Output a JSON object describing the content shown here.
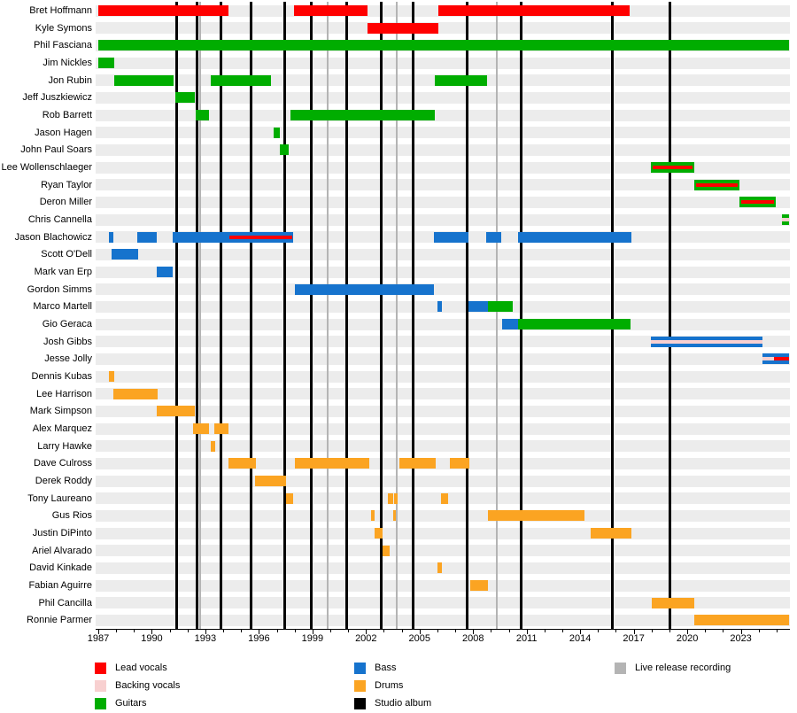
{
  "chart_data": {
    "type": "timeline",
    "description": "Band line-up timeline: horizontal bars per member by role, vertical lines for studio albums and live release recordings",
    "x_axis": {
      "start": 1987.0,
      "end": 2025.7,
      "major_ticks": [
        1987,
        1990,
        1993,
        1996,
        1999,
        2002,
        2005,
        2008,
        2011,
        2014,
        2017,
        2020,
        2023
      ],
      "minor_tick_interval": 1
    },
    "colors": {
      "lead_vocals": "#ff0000",
      "backing_vocals": "#f8d0d0",
      "guitars": "#00ad00",
      "bass": "#1673cd",
      "drums": "#fba422",
      "studio_album": "#000000",
      "live_release": "#b4b4b4",
      "row_band": "#ececec"
    },
    "studio_album_years": [
      1991.4,
      1992.55,
      1993.85,
      1995.55,
      1997.45,
      1998.95,
      2000.9,
      2002.85,
      2004.65,
      2007.65,
      2010.7,
      2015.8,
      2019.05
    ],
    "live_release_years": [
      1992.7,
      1999.85,
      2003.7,
      2009.35
    ],
    "members": [
      {
        "name": "Bret Hoffmann",
        "segments": [
          {
            "role": "lead_vocals",
            "start": 1987.0,
            "end": 1994.3
          },
          {
            "role": "lead_vocals",
            "start": 1997.95,
            "end": 2002.1
          },
          {
            "role": "lead_vocals",
            "start": 2006.05,
            "end": 2016.75
          }
        ]
      },
      {
        "name": "Kyle Symons",
        "segments": [
          {
            "role": "lead_vocals",
            "start": 2002.1,
            "end": 2006.05
          }
        ]
      },
      {
        "name": "Phil Fasciana",
        "segments": [
          {
            "role": "guitars",
            "start": 1987.0,
            "end": 2025.7
          }
        ]
      },
      {
        "name": "Jim Nickles",
        "segments": [
          {
            "role": "guitars",
            "start": 1987.0,
            "end": 1987.9
          }
        ]
      },
      {
        "name": "Jon Rubin",
        "segments": [
          {
            "role": "guitars",
            "start": 1987.9,
            "end": 1991.2
          },
          {
            "role": "guitars",
            "start": 1993.3,
            "end": 1996.7
          },
          {
            "role": "guitars",
            "start": 2005.85,
            "end": 2008.8
          }
        ]
      },
      {
        "name": "Jeff Juszkiewicz",
        "segments": [
          {
            "role": "guitars",
            "start": 1991.3,
            "end": 1992.4
          }
        ]
      },
      {
        "name": "Rob Barrett",
        "segments": [
          {
            "role": "guitars",
            "start": 1992.45,
            "end": 1993.2
          },
          {
            "role": "guitars",
            "start": 1997.75,
            "end": 2005.85
          }
        ]
      },
      {
        "name": "Jason Hagen",
        "segments": [
          {
            "role": "guitars",
            "start": 1996.8,
            "end": 1997.15
          }
        ]
      },
      {
        "name": "John Paul Soars",
        "segments": [
          {
            "role": "guitars",
            "start": 1997.15,
            "end": 1997.65
          }
        ]
      },
      {
        "name": "Lee Wollenschlaeger",
        "segments": [
          {
            "role": "guitars",
            "start": 2017.95,
            "end": 2020.4,
            "overlays": [
              {
                "role": "lead_vocals",
                "start": 2018.05,
                "end": 2020.3
              }
            ]
          }
        ]
      },
      {
        "name": "Ryan Taylor",
        "segments": [
          {
            "role": "guitars",
            "start": 2020.4,
            "end": 2022.9,
            "overlays": [
              {
                "role": "lead_vocals",
                "start": 2020.5,
                "end": 2022.8
              }
            ]
          }
        ]
      },
      {
        "name": "Deron Miller",
        "segments": [
          {
            "role": "guitars",
            "start": 2022.9,
            "end": 2024.95,
            "overlays": [
              {
                "role": "lead_vocals",
                "start": 2023.0,
                "end": 2024.85
              }
            ]
          }
        ]
      },
      {
        "name": "Chris Cannella",
        "segments": [
          {
            "role": "guitars",
            "start": 2025.3,
            "end": 2025.7,
            "overlays": [
              {
                "role": "backing_vocals",
                "start": 2025.3,
                "end": 2025.7
              }
            ]
          }
        ]
      },
      {
        "name": "Jason Blachowicz",
        "segments": [
          {
            "role": "bass",
            "start": 1987.6,
            "end": 1987.85
          },
          {
            "role": "bass",
            "start": 1989.2,
            "end": 1990.3
          },
          {
            "role": "bass",
            "start": 1991.15,
            "end": 1997.9,
            "overlays": [
              {
                "role": "lead_vocals",
                "start": 1994.35,
                "end": 1997.85
              }
            ]
          },
          {
            "role": "bass",
            "start": 2005.8,
            "end": 2007.75
          },
          {
            "role": "bass",
            "start": 2008.75,
            "end": 2009.6
          },
          {
            "role": "bass",
            "start": 2010.5,
            "end": 2016.85
          }
        ]
      },
      {
        "name": "Scott O'Dell",
        "segments": [
          {
            "role": "bass",
            "start": 1987.75,
            "end": 1989.25
          }
        ]
      },
      {
        "name": "Mark van Erp",
        "segments": [
          {
            "role": "bass",
            "start": 1990.25,
            "end": 1991.15
          }
        ]
      },
      {
        "name": "Gordon Simms",
        "segments": [
          {
            "role": "bass",
            "start": 1998.0,
            "end": 2005.8
          }
        ]
      },
      {
        "name": "Marco Martell",
        "segments": [
          {
            "role": "bass",
            "start": 2006.0,
            "end": 2006.25
          },
          {
            "role": "bass",
            "start": 2007.75,
            "end": 2008.85
          },
          {
            "role": "guitars",
            "start": 2008.85,
            "end": 2010.2
          }
        ]
      },
      {
        "name": "Gio Geraca",
        "segments": [
          {
            "role": "bass",
            "start": 2009.6,
            "end": 2010.5
          },
          {
            "role": "guitars",
            "start": 2010.5,
            "end": 2016.8
          }
        ]
      },
      {
        "name": "Josh Gibbs",
        "segments": [
          {
            "role": "bass",
            "start": 2017.95,
            "end": 2024.2,
            "overlays": [
              {
                "role": "backing_vocals",
                "start": 2017.95,
                "end": 2024.2
              }
            ]
          }
        ]
      },
      {
        "name": "Jesse Jolly",
        "segments": [
          {
            "role": "bass",
            "start": 2024.2,
            "end": 2025.7,
            "overlays": [
              {
                "role": "backing_vocals",
                "start": 2024.2,
                "end": 2024.85
              },
              {
                "role": "lead_vocals",
                "start": 2024.85,
                "end": 2025.7
              }
            ]
          }
        ]
      },
      {
        "name": "Dennis Kubas",
        "segments": [
          {
            "role": "drums",
            "start": 1987.6,
            "end": 1987.9
          }
        ]
      },
      {
        "name": "Lee Harrison",
        "segments": [
          {
            "role": "drums",
            "start": 1987.85,
            "end": 1990.3
          }
        ]
      },
      {
        "name": "Mark Simpson",
        "segments": [
          {
            "role": "drums",
            "start": 1990.25,
            "end": 1992.4
          }
        ]
      },
      {
        "name": "Alex Marquez",
        "segments": [
          {
            "role": "drums",
            "start": 1992.3,
            "end": 1993.2
          },
          {
            "role": "drums",
            "start": 1993.5,
            "end": 1994.3
          }
        ]
      },
      {
        "name": "Larry Hawke",
        "segments": [
          {
            "role": "drums",
            "start": 1993.3,
            "end": 1993.55
          }
        ]
      },
      {
        "name": "Dave Culross",
        "segments": [
          {
            "role": "drums",
            "start": 1994.3,
            "end": 1995.85
          },
          {
            "role": "drums",
            "start": 1998.0,
            "end": 2002.2
          },
          {
            "role": "drums",
            "start": 2003.85,
            "end": 2005.9
          },
          {
            "role": "drums",
            "start": 2006.7,
            "end": 2007.8
          }
        ]
      },
      {
        "name": "Derek Roddy",
        "segments": [
          {
            "role": "drums",
            "start": 1995.8,
            "end": 1997.5
          }
        ]
      },
      {
        "name": "Tony Laureano",
        "segments": [
          {
            "role": "drums",
            "start": 1997.5,
            "end": 1997.9
          },
          {
            "role": "drums",
            "start": 2003.2,
            "end": 2003.5
          },
          {
            "role": "drums",
            "start": 2003.55,
            "end": 2003.75
          },
          {
            "role": "drums",
            "start": 2006.2,
            "end": 2006.6
          }
        ]
      },
      {
        "name": "Gus Rios",
        "segments": [
          {
            "role": "drums",
            "start": 2002.3,
            "end": 2002.5
          },
          {
            "role": "drums",
            "start": 2003.5,
            "end": 2003.65
          },
          {
            "role": "drums",
            "start": 2008.85,
            "end": 2014.25
          }
        ]
      },
      {
        "name": "Justin DiPinto",
        "segments": [
          {
            "role": "drums",
            "start": 2002.5,
            "end": 2002.95
          },
          {
            "role": "drums",
            "start": 2014.6,
            "end": 2016.85
          }
        ]
      },
      {
        "name": "Ariel Alvarado",
        "segments": [
          {
            "role": "drums",
            "start": 2002.95,
            "end": 2003.3
          }
        ]
      },
      {
        "name": "David Kinkade",
        "segments": [
          {
            "role": "drums",
            "start": 2006.0,
            "end": 2006.25
          }
        ]
      },
      {
        "name": "Fabian Aguirre",
        "segments": [
          {
            "role": "drums",
            "start": 2007.85,
            "end": 2008.85
          }
        ]
      },
      {
        "name": "Phil Cancilla",
        "segments": [
          {
            "role": "drums",
            "start": 2018.0,
            "end": 2020.4
          }
        ]
      },
      {
        "name": "Ronnie Parmer",
        "segments": [
          {
            "role": "drums",
            "start": 2020.4,
            "end": 2025.7
          }
        ]
      }
    ],
    "legend": {
      "columns": [
        {
          "items": [
            {
              "label": "Lead vocals",
              "role": "lead_vocals"
            },
            {
              "label": "Backing vocals",
              "role": "backing_vocals"
            },
            {
              "label": "Guitars",
              "role": "guitars"
            }
          ]
        },
        {
          "items": [
            {
              "label": "Bass",
              "role": "bass"
            },
            {
              "label": "Drums",
              "role": "drums"
            },
            {
              "label": "Studio album",
              "role": "studio_album"
            }
          ]
        },
        {
          "items": [
            {
              "label": "Live release recording",
              "role": "live_release"
            }
          ]
        }
      ]
    }
  }
}
